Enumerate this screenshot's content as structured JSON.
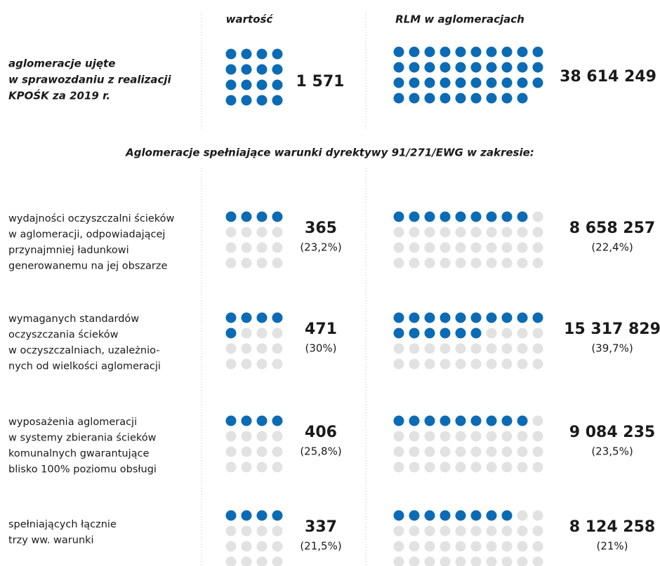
{
  "header": {
    "col_value": "wartość",
    "col_rlm": "RLM w aglomeracjach"
  },
  "total": {
    "label": [
      "aglomeracje ujęte",
      "w sprawozdaniu z realizacji",
      "KPOŚK za 2019 r."
    ],
    "value": "1 571",
    "rlm": "38 614 249"
  },
  "subtitle": "Aglomeracje spełniające warunki dyrektywy 91/271/EWG w zakresie:",
  "rows": [
    {
      "label": [
        "wydajności oczyszczalni ścieków",
        "w aglomeracji, odpowiadającej",
        "przynajmniej ładunkowi",
        "generowanemu na jej obszarze"
      ],
      "value": "365",
      "value_share": "(23,2%)",
      "rlm": "8 658 257",
      "rlm_share": "(22,4%)"
    },
    {
      "label": [
        "wymaganych standardów",
        "oczyszczania ścieków",
        "w oczyszczalniach, uzależnio-",
        "nych od wielkości aglomeracji"
      ],
      "value": "471",
      "value_share": "(30%)",
      "rlm": "15 317 829",
      "rlm_share": "(39,7%)"
    },
    {
      "label": [
        "wyposażenia aglomeracji",
        "w systemy zbierania ścieków",
        "komunalnych gwarantujące",
        "blisko 100% poziomu obsługi"
      ],
      "value": "406",
      "value_share": "(25,8%)",
      "rlm": "9 084 235",
      "rlm_share": "(23,5%)"
    },
    {
      "label": [
        "spełniających łącznie",
        "trzy ww. warunki"
      ],
      "value": "337",
      "value_share": "(21,5%)",
      "rlm": "8 124 258",
      "rlm_share": "(21%)"
    }
  ]
}
